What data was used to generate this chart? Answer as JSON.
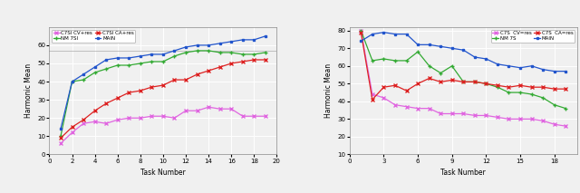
{
  "left": {
    "xlabel": "Task Number",
    "ylabel": "Harmonic Mean",
    "xlim": [
      0,
      20
    ],
    "ylim": [
      0,
      70
    ],
    "xticks": [
      0,
      2,
      4,
      6,
      8,
      10,
      12,
      14,
      16,
      18,
      20
    ],
    "yticks": [
      0,
      10,
      20,
      30,
      40,
      50,
      60
    ],
    "hline_y": 57,
    "legend": [
      {
        "label": "C7SI CV+res",
        "color": "#e066e0",
        "marker": "x"
      },
      {
        "label": "NM 7SI",
        "color": "#33aa33",
        "marker": "+"
      },
      {
        "label": "C7SI CA+res",
        "color": "#dd2222",
        "marker": "x"
      },
      {
        "label": "MAIN",
        "color": "#2255cc",
        "marker": "s"
      }
    ],
    "series": {
      "cv_res": [
        6,
        12,
        17,
        18,
        17,
        19,
        20,
        20,
        21,
        21,
        20,
        24,
        24,
        26,
        25,
        25,
        21,
        21,
        21
      ],
      "nm_7si": [
        10,
        40,
        41,
        45,
        47,
        49,
        49,
        50,
        51,
        51,
        54,
        56,
        57,
        57,
        56,
        56,
        55,
        55,
        56
      ],
      "ca_res": [
        9,
        15,
        19,
        24,
        28,
        31,
        34,
        35,
        37,
        38,
        41,
        41,
        44,
        46,
        48,
        50,
        51,
        52,
        52
      ],
      "main": [
        14,
        40,
        44,
        48,
        52,
        53,
        53,
        54,
        55,
        55,
        57,
        59,
        60,
        60,
        61,
        62,
        63,
        63,
        65
      ]
    },
    "x": [
      1,
      2,
      3,
      4,
      5,
      6,
      7,
      8,
      9,
      10,
      11,
      12,
      13,
      14,
      15,
      16,
      17,
      18,
      19
    ]
  },
  "right": {
    "xlabel": "Task Number",
    "ylabel": "Harmonic Mean",
    "xlim": [
      0,
      20
    ],
    "ylim": [
      10,
      82
    ],
    "xticks": [
      0,
      3,
      6,
      9,
      12,
      15,
      18
    ],
    "yticks": [
      10,
      20,
      30,
      40,
      50,
      60,
      70,
      80
    ],
    "legend": [
      {
        "label": "C7S  CV=res",
        "color": "#e066e0",
        "marker": "x"
      },
      {
        "label": "NM 7S",
        "color": "#33aa33",
        "marker": "+"
      },
      {
        "label": "C7S  CA=res",
        "color": "#dd2222",
        "marker": "x"
      },
      {
        "label": "MAIN",
        "color": "#2255cc",
        "marker": "s"
      }
    ],
    "series": {
      "cv_res": [
        80,
        44,
        42,
        38,
        37,
        36,
        36,
        33,
        33,
        33,
        32,
        32,
        31,
        30,
        30,
        30,
        29,
        27,
        26
      ],
      "nm_7s": [
        80,
        63,
        64,
        63,
        63,
        68,
        60,
        56,
        60,
        51,
        51,
        50,
        48,
        45,
        45,
        44,
        42,
        38,
        36
      ],
      "ca_res": [
        79,
        41,
        48,
        49,
        46,
        50,
        53,
        51,
        52,
        51,
        51,
        50,
        49,
        48,
        49,
        48,
        48,
        47,
        47
      ],
      "main": [
        74,
        78,
        79,
        78,
        78,
        72,
        72,
        71,
        70,
        69,
        65,
        64,
        61,
        60,
        59,
        60,
        58,
        57,
        57
      ]
    },
    "x": [
      1,
      2,
      3,
      4,
      5,
      6,
      7,
      8,
      9,
      10,
      11,
      12,
      13,
      14,
      15,
      16,
      17,
      18,
      19
    ]
  },
  "bg_color": "#f0f0f0",
  "plot_bg": "#f0f0f0",
  "grid_color": "#ffffff"
}
